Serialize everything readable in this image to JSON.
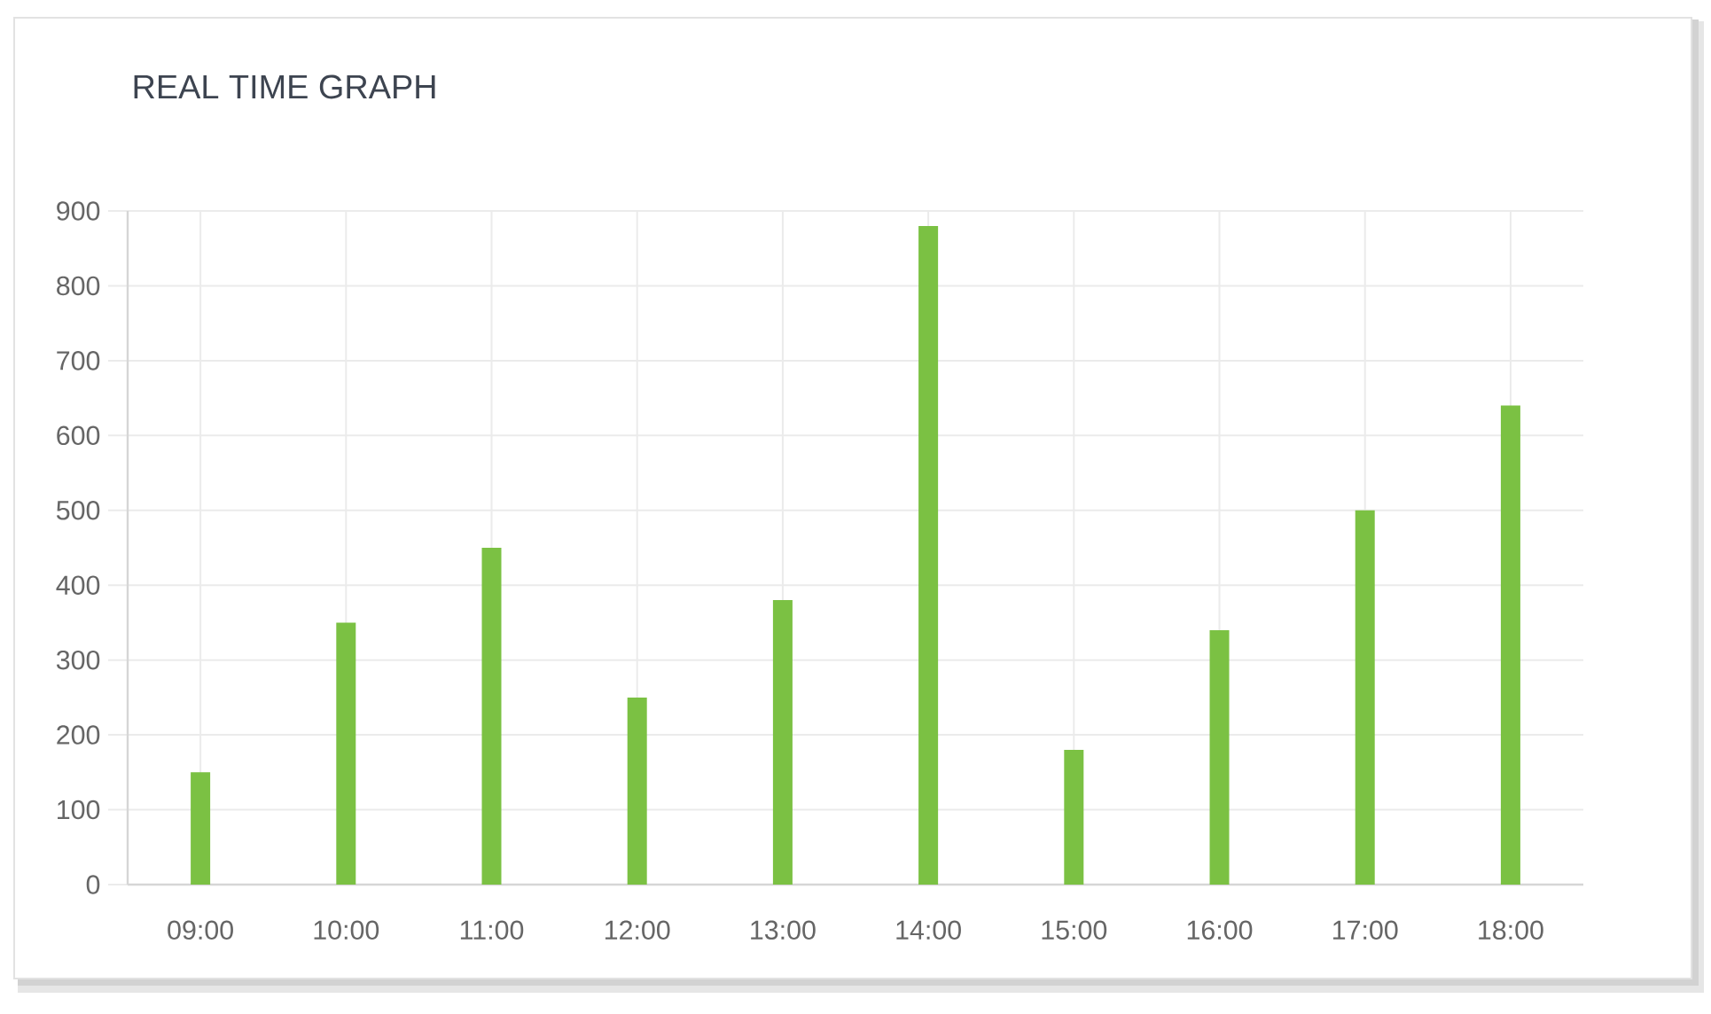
{
  "chart_data": {
    "type": "bar",
    "title": "REAL TIME GRAPH",
    "categories": [
      "09:00",
      "10:00",
      "11:00",
      "12:00",
      "13:00",
      "14:00",
      "15:00",
      "16:00",
      "17:00",
      "18:00"
    ],
    "values": [
      150,
      350,
      450,
      250,
      380,
      880,
      180,
      340,
      500,
      640
    ],
    "color": "#7bc143",
    "ylim": [
      0,
      900
    ],
    "yticks": [
      0,
      100,
      200,
      300,
      400,
      500,
      600,
      700,
      800,
      900
    ],
    "grid": true
  }
}
